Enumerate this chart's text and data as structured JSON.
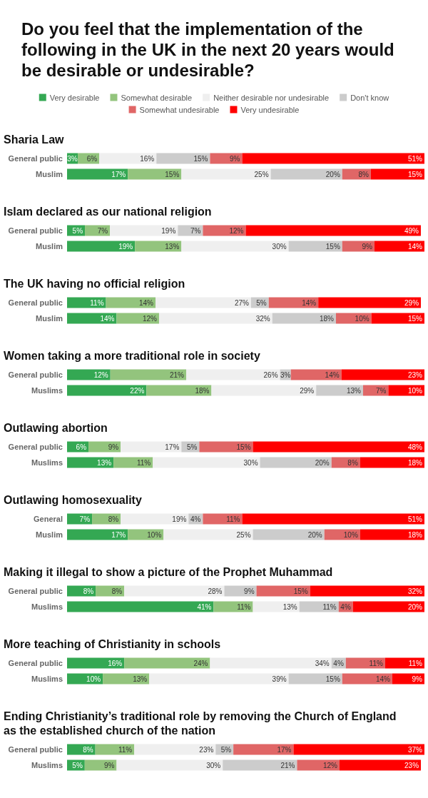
{
  "chart_data": [
    {
      "type": "bar",
      "orientation": "horizontal",
      "stacked": true,
      "tick_labels": "y",
      "legend": "top",
      "title": "Do you feel that the implementation of the following in the UK in the next 20 years would be desirable or undesirable?",
      "subtitle": "Sharia Law",
      "categories": [
        "General public",
        "Muslim"
      ],
      "series": [
        {
          "name": "Very desirable",
          "color": "#34a853",
          "values": [
            3,
            17
          ],
          "value_labels": [
            "3%",
            "17%"
          ]
        },
        {
          "name": "Somewhat desirable",
          "color": "#93c47d",
          "values": [
            6,
            15
          ],
          "value_labels": [
            "6%",
            "15%"
          ]
        },
        {
          "name": "Neither desirable nor undesirable",
          "color": "#efefef",
          "values": [
            16,
            25
          ],
          "value_labels": [
            "16%",
            "25%"
          ]
        },
        {
          "name": "Don't know",
          "color": "#cccccc",
          "values": [
            15,
            20
          ],
          "value_labels": [
            "15%",
            "20%"
          ]
        },
        {
          "name": "Somewhat undesirable",
          "color": "#e06666",
          "values": [
            9,
            8
          ],
          "value_labels": [
            "9%",
            "8%"
          ]
        },
        {
          "name": "Very undesirable",
          "color": "#ff0000",
          "values": [
            51,
            15
          ],
          "value_labels": [
            "51%",
            "15%"
          ]
        }
      ]
    },
    {
      "type": "bar",
      "orientation": "horizontal",
      "stacked": true,
      "tick_labels": "y",
      "title": "Islam declared as our national religion",
      "categories": [
        "General public",
        "Muslim"
      ],
      "series": [
        {
          "color": "#34a853",
          "values": [
            5,
            19
          ],
          "value_labels": [
            "5%",
            "19%"
          ]
        },
        {
          "color": "#93c47d",
          "values": [
            7,
            13
          ],
          "value_labels": [
            "7%",
            "13%"
          ]
        },
        {
          "color": "#efefef",
          "values": [
            19,
            30
          ],
          "value_labels": [
            "19%",
            "30%"
          ]
        },
        {
          "color": "#cccccc",
          "values": [
            7,
            15
          ],
          "value_labels": [
            "7%",
            "15%"
          ]
        },
        {
          "color": "#e06666",
          "values": [
            12,
            9
          ],
          "value_labels": [
            "12%",
            "9%"
          ]
        },
        {
          "color": "#ff0000",
          "values": [
            49,
            14
          ],
          "value_labels": [
            "49%",
            "14%"
          ]
        }
      ]
    },
    {
      "type": "bar",
      "orientation": "horizontal",
      "stacked": true,
      "tick_labels": "y",
      "title": "The UK having no official religion",
      "categories": [
        "General public",
        "Muslim"
      ],
      "series": [
        {
          "color": "#34a853",
          "values": [
            11,
            14
          ],
          "value_labels": [
            "11%",
            "14%"
          ]
        },
        {
          "color": "#93c47d",
          "values": [
            14,
            12
          ],
          "value_labels": [
            "14%",
            "12%"
          ]
        },
        {
          "color": "#efefef",
          "values": [
            27,
            32
          ],
          "value_labels": [
            "27%",
            "32%"
          ]
        },
        {
          "color": "#cccccc",
          "values": [
            5,
            18
          ],
          "value_labels": [
            "5%",
            "18%"
          ]
        },
        {
          "color": "#e06666",
          "values": [
            14,
            10
          ],
          "value_labels": [
            "14%",
            "10%"
          ]
        },
        {
          "color": "#ff0000",
          "values": [
            29,
            15
          ],
          "value_labels": [
            "29%",
            "15%"
          ]
        }
      ]
    },
    {
      "type": "bar",
      "orientation": "horizontal",
      "stacked": true,
      "tick_labels": "y",
      "title": "Women taking a more traditional role in society",
      "categories": [
        "General public",
        "Muslims"
      ],
      "series": [
        {
          "color": "#34a853",
          "values": [
            12,
            22
          ],
          "value_labels": [
            "12%",
            "22%"
          ]
        },
        {
          "color": "#93c47d",
          "values": [
            21,
            18
          ],
          "value_labels": [
            "21%",
            "18%"
          ]
        },
        {
          "color": "#efefef",
          "values": [
            26,
            29
          ],
          "value_labels": [
            "26%",
            "29%"
          ]
        },
        {
          "color": "#cccccc",
          "values": [
            3,
            13
          ],
          "value_labels": [
            "3%",
            "13%"
          ]
        },
        {
          "color": "#e06666",
          "values": [
            14,
            7
          ],
          "value_labels": [
            "14%",
            "7%"
          ]
        },
        {
          "color": "#ff0000",
          "values": [
            23,
            10
          ],
          "value_labels": [
            "23%",
            "10%"
          ]
        }
      ]
    },
    {
      "type": "bar",
      "orientation": "horizontal",
      "stacked": true,
      "tick_labels": "y",
      "title": "Outlawing abortion",
      "categories": [
        "General public",
        "Muslims"
      ],
      "series": [
        {
          "color": "#34a853",
          "values": [
            6,
            13
          ],
          "value_labels": [
            "6%",
            "13%"
          ]
        },
        {
          "color": "#93c47d",
          "values": [
            9,
            11
          ],
          "value_labels": [
            "9%",
            "11%"
          ]
        },
        {
          "color": "#efefef",
          "values": [
            17,
            30
          ],
          "value_labels": [
            "17%",
            "30%"
          ]
        },
        {
          "color": "#cccccc",
          "values": [
            5,
            20
          ],
          "value_labels": [
            "5%",
            "20%"
          ]
        },
        {
          "color": "#e06666",
          "values": [
            15,
            8
          ],
          "value_labels": [
            "15%",
            "8%"
          ]
        },
        {
          "color": "#ff0000",
          "values": [
            48,
            18
          ],
          "value_labels": [
            "48%",
            "18%"
          ]
        }
      ]
    },
    {
      "type": "bar",
      "orientation": "horizontal",
      "stacked": true,
      "tick_labels": "y",
      "title": "Outlawing homosexuality",
      "categories": [
        "General",
        "Muslim"
      ],
      "series": [
        {
          "color": "#34a853",
          "values": [
            7,
            17
          ],
          "value_labels": [
            "7%",
            "17%"
          ]
        },
        {
          "color": "#93c47d",
          "values": [
            8,
            10
          ],
          "value_labels": [
            "8%",
            "10%"
          ]
        },
        {
          "color": "#efefef",
          "values": [
            19,
            25
          ],
          "value_labels": [
            "19%",
            "25%"
          ]
        },
        {
          "color": "#cccccc",
          "values": [
            4,
            20
          ],
          "value_labels": [
            "4%",
            "20%"
          ]
        },
        {
          "color": "#e06666",
          "values": [
            11,
            10
          ],
          "value_labels": [
            "11%",
            "10%"
          ]
        },
        {
          "color": "#ff0000",
          "values": [
            51,
            18
          ],
          "value_labels": [
            "51%",
            "18%"
          ]
        }
      ]
    },
    {
      "type": "bar",
      "orientation": "horizontal",
      "stacked": true,
      "tick_labels": "y",
      "title": "Making it illegal to show a picture of the Prophet Muhammad",
      "categories": [
        "General public",
        "Muslims"
      ],
      "series": [
        {
          "color": "#34a853",
          "values": [
            8,
            41
          ],
          "value_labels": [
            "8%",
            "41%"
          ]
        },
        {
          "color": "#93c47d",
          "values": [
            8,
            11
          ],
          "value_labels": [
            "8%",
            "11%"
          ]
        },
        {
          "color": "#efefef",
          "values": [
            28,
            13
          ],
          "value_labels": [
            "28%",
            "13%"
          ]
        },
        {
          "color": "#cccccc",
          "values": [
            9,
            11
          ],
          "value_labels": [
            "9%",
            "11%"
          ]
        },
        {
          "color": "#e06666",
          "values": [
            15,
            4
          ],
          "value_labels": [
            "15%",
            "4%"
          ]
        },
        {
          "color": "#ff0000",
          "values": [
            32,
            20
          ],
          "value_labels": [
            "32%",
            "20%"
          ]
        }
      ]
    },
    {
      "type": "bar",
      "orientation": "horizontal",
      "stacked": true,
      "tick_labels": "y",
      "title": "More teaching of Christianity in schools",
      "categories": [
        "General public",
        "Muslims"
      ],
      "series": [
        {
          "color": "#34a853",
          "values": [
            16,
            10
          ],
          "value_labels": [
            "16%",
            "10%"
          ]
        },
        {
          "color": "#93c47d",
          "values": [
            24,
            13
          ],
          "value_labels": [
            "24%",
            "13%"
          ]
        },
        {
          "color": "#efefef",
          "values": [
            34,
            39
          ],
          "value_labels": [
            "34%",
            "39%"
          ]
        },
        {
          "color": "#cccccc",
          "values": [
            4,
            15
          ],
          "value_labels": [
            "4%",
            "15%"
          ]
        },
        {
          "color": "#e06666",
          "values": [
            11,
            14
          ],
          "value_labels": [
            "11%",
            "14%"
          ]
        },
        {
          "color": "#ff0000",
          "values": [
            11,
            9
          ],
          "value_labels": [
            "11%",
            "9%"
          ]
        }
      ]
    },
    {
      "type": "bar",
      "orientation": "horizontal",
      "stacked": true,
      "tick_labels": "y",
      "title": "Ending Christianity’s traditional role by removing the Church of England as the established church of the nation",
      "categories": [
        "General public",
        "Muslims"
      ],
      "series": [
        {
          "color": "#34a853",
          "values": [
            8,
            5
          ],
          "value_labels": [
            "8%",
            "5%"
          ]
        },
        {
          "color": "#93c47d",
          "values": [
            11,
            9
          ],
          "value_labels": [
            "11%",
            "9%"
          ]
        },
        {
          "color": "#efefef",
          "values": [
            23,
            30
          ],
          "value_labels": [
            "23%",
            "30%"
          ]
        },
        {
          "color": "#cccccc",
          "values": [
            5,
            21
          ],
          "value_labels": [
            "5%",
            "21%"
          ]
        },
        {
          "color": "#e06666",
          "values": [
            17,
            12
          ],
          "value_labels": [
            "17%",
            "12%"
          ]
        },
        {
          "color": "#ff0000",
          "values": [
            37,
            23
          ],
          "value_labels": [
            "37%",
            "23%"
          ]
        }
      ]
    }
  ]
}
